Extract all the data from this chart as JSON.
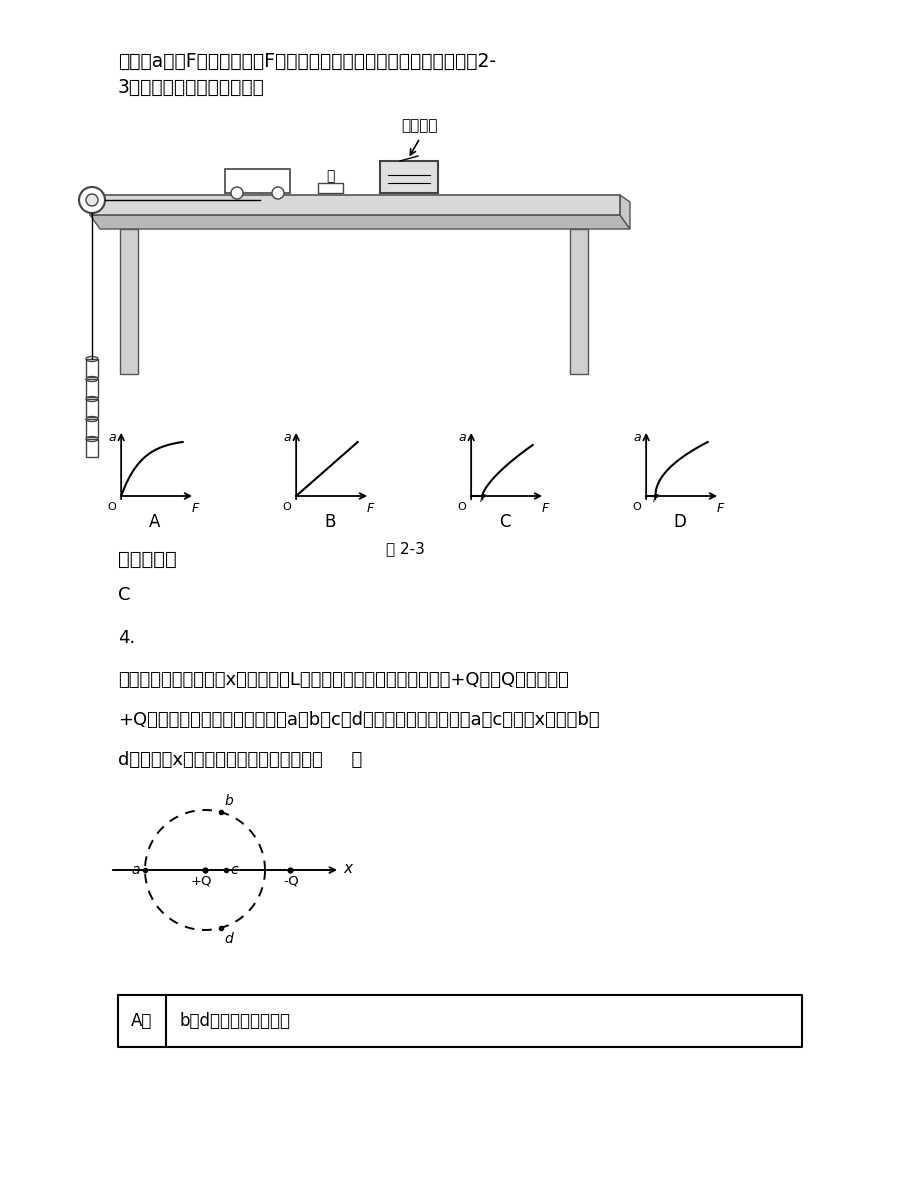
{
  "bg_color": "#ffffff",
  "text_color": "#000000",
  "top_text_1": "加速度a与力F的关系，其中F为用手按住车时绳对车的拉力，下列图象2-",
  "top_text_2": "3能表示该同学实验结果的是",
  "fig_caption": "图 2-3",
  "graph_labels": [
    "A",
    "B",
    "C",
    "D"
  ],
  "answer_header": "参考答案：",
  "answer_c": "C",
  "problem_4": "4.",
  "problem_text_1": "（多选）如图所示，在x轴上相距为L的两点固定两个等量异种点电荷+Q、－Q，虚线是以",
  "problem_text_2": "+Q所在点为圆心、为半径的圆，a、b、c、d是圆上的四个点，其中a、c两点在x轴上，b、",
  "problem_text_3": "d两点关于x轴对称。下列判断正确的是（     ）",
  "table_A_label": "A．",
  "table_A_content": "b、d两点处的电势相同",
  "charge_pos": "+Q",
  "charge_neg": "-Q",
  "axis_x": "x"
}
